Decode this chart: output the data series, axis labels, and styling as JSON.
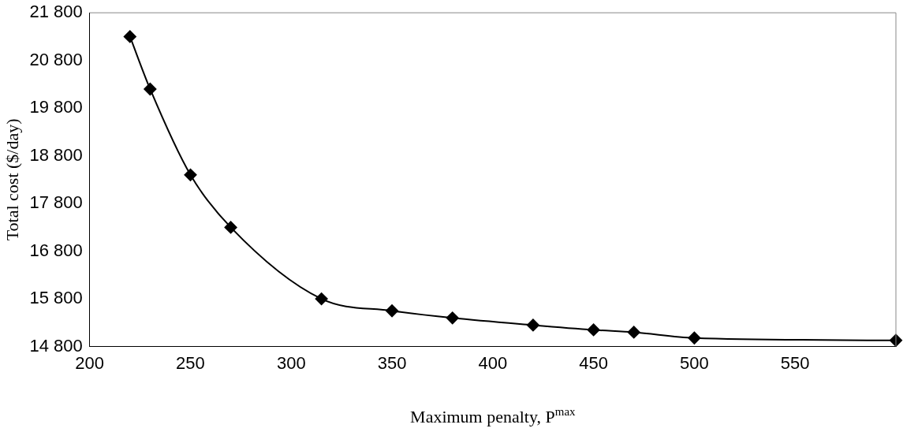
{
  "chart_data": {
    "type": "line",
    "xlabel": "Maximum penalty, P$^{max}$",
    "ylabel": "Total cost ($/day)",
    "x": [
      220,
      230,
      250,
      270,
      315,
      350,
      380,
      420,
      450,
      470,
      500,
      600
    ],
    "series": [
      {
        "color": "#000000",
        "values": [
          21300,
          20200,
          18400,
          17300,
          15800,
          15550,
          15400,
          15250,
          15150,
          15100,
          14980,
          14930
        ]
      }
    ],
    "xlim": [
      200,
      600
    ],
    "xticks": [
      200,
      250,
      300,
      350,
      400,
      450,
      500,
      550
    ],
    "ylim": [
      14800,
      21800
    ],
    "yticks": [
      {
        "value": 14800,
        "label": "14 800"
      },
      {
        "value": 15800,
        "label": "15 800"
      },
      {
        "value": 16800,
        "label": "16 800"
      },
      {
        "value": 17800,
        "label": "17 800"
      },
      {
        "value": 18800,
        "label": "18 800"
      },
      {
        "value": 19800,
        "label": "19 800"
      },
      {
        "value": 20800,
        "label": "20 800"
      },
      {
        "value": 21800,
        "label": "21 800"
      }
    ],
    "grid": false,
    "legend": false,
    "marker": "diamond",
    "line_style": "solid"
  }
}
